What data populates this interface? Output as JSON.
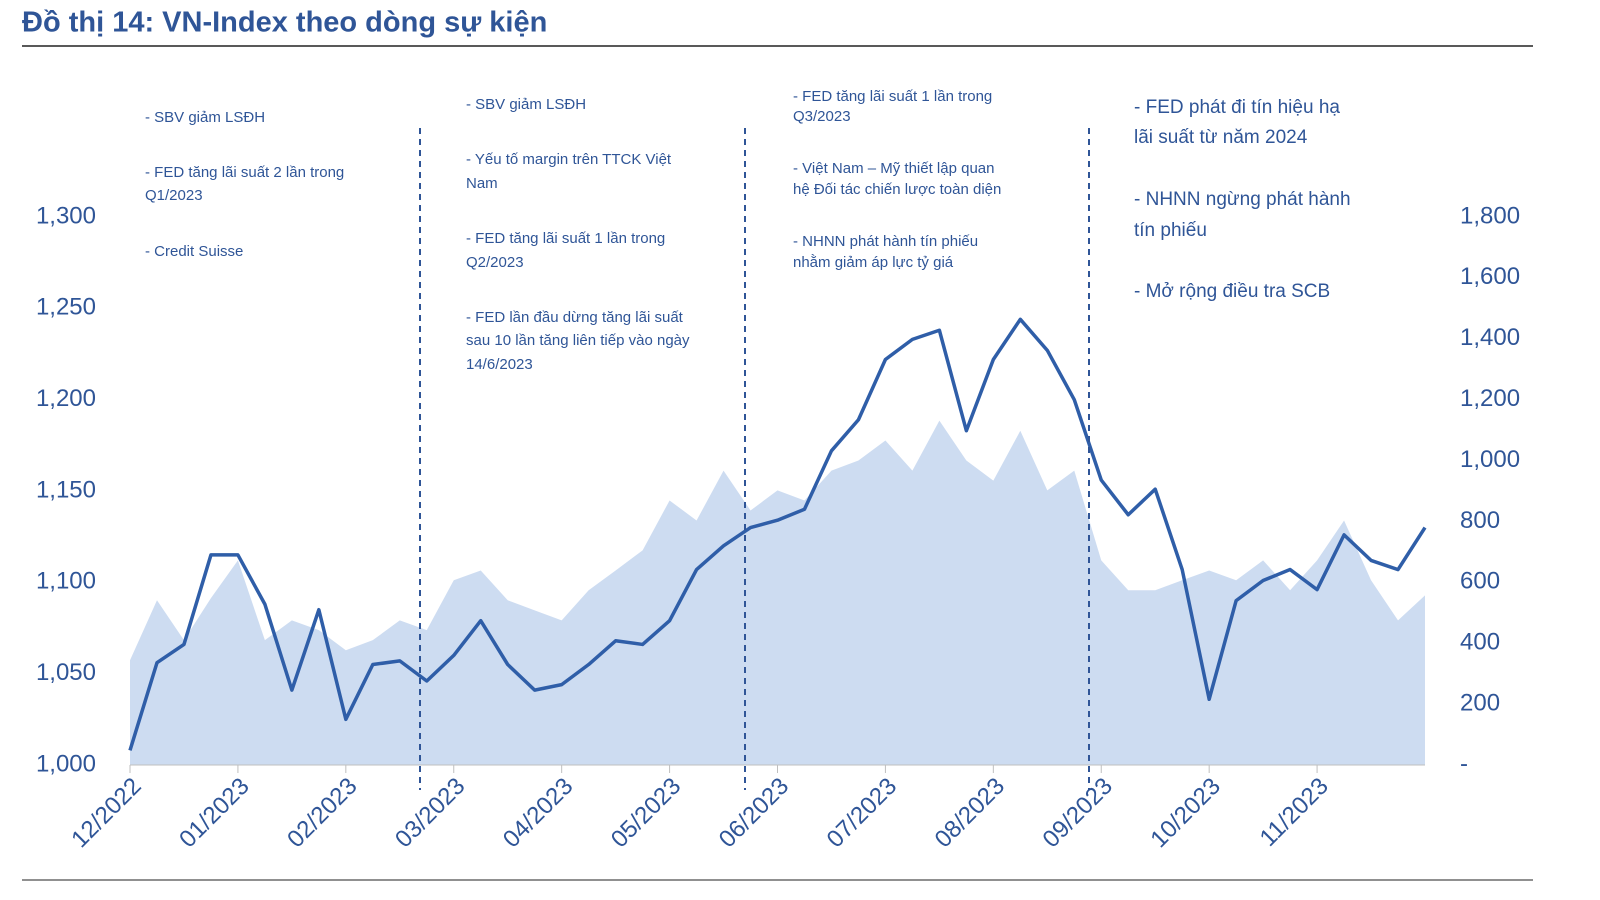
{
  "chart_data": {
    "type": "line",
    "title": "Đồ thị 14: VN-Index theo dòng sự kiện",
    "x": [
      0,
      0.25,
      0.5,
      0.75,
      1,
      1.25,
      1.5,
      1.75,
      2,
      2.25,
      2.5,
      2.75,
      3,
      3.25,
      3.5,
      3.75,
      4,
      4.25,
      4.5,
      4.75,
      5,
      5.25,
      5.5,
      5.75,
      6,
      6.25,
      6.5,
      6.75,
      7,
      7.25,
      7.5,
      7.75,
      8,
      8.25,
      8.5,
      8.75,
      9,
      9.25,
      9.5,
      9.75,
      10,
      10.25,
      10.5,
      10.75,
      11,
      11.25,
      11.5,
      11.75,
      12
    ],
    "xlim": [
      0,
      12
    ],
    "xticks": [
      {
        "value": 0,
        "label": "12/2022"
      },
      {
        "value": 1,
        "label": "01/2023"
      },
      {
        "value": 2,
        "label": "02/2023"
      },
      {
        "value": 3,
        "label": "03/2023"
      },
      {
        "value": 4,
        "label": "04/2023"
      },
      {
        "value": 5,
        "label": "05/2023"
      },
      {
        "value": 6,
        "label": "06/2023"
      },
      {
        "value": 7,
        "label": "07/2023"
      },
      {
        "value": 8,
        "label": "08/2023"
      },
      {
        "value": 9,
        "label": "09/2023"
      },
      {
        "value": 10,
        "label": "10/2023"
      },
      {
        "value": 11,
        "label": "11/2023"
      }
    ],
    "ylim": [
      1000,
      1300
    ],
    "yticks": [
      {
        "value": 1000,
        "label": "1,000"
      },
      {
        "value": 1050,
        "label": "1,050"
      },
      {
        "value": 1100,
        "label": "1,100"
      },
      {
        "value": 1150,
        "label": "1,150"
      },
      {
        "value": 1200,
        "label": "1,200"
      },
      {
        "value": 1250,
        "label": "1,250"
      },
      {
        "value": 1300,
        "label": "1,300"
      }
    ],
    "y2lim": [
      0,
      1800
    ],
    "y2ticks": [
      {
        "value": 0,
        "label": "-"
      },
      200,
      400,
      600,
      800,
      {
        "value": 1000,
        "label": "1,000"
      },
      {
        "value": 1200,
        "label": "1,200"
      },
      {
        "value": 1400,
        "label": "1,400"
      },
      {
        "value": 1600,
        "label": "1,600"
      },
      {
        "value": 1800,
        "label": "1,800"
      }
    ],
    "series": [
      {
        "type": "line",
        "axis": "y",
        "color": "#2f5ea8",
        "values": [
          1008,
          1056,
          1066,
          1115,
          1115,
          1088,
          1041,
          1085,
          1025,
          1055,
          1057,
          1046,
          1060,
          1079,
          1055,
          1041,
          1044,
          1055,
          1068,
          1066,
          1079,
          1107,
          1120,
          1130,
          1134,
          1140,
          1172,
          1189,
          1222,
          1233,
          1238,
          1183,
          1222,
          1244,
          1227,
          1200,
          1156,
          1137,
          1151,
          1107,
          1036,
          1090,
          1101,
          1107,
          1096,
          1126,
          1112,
          1107,
          1130
        ]
      },
      {
        "type": "area",
        "axis": "y2",
        "color": "#cddcf1",
        "values": [
          344,
          541,
          410,
          548,
          672,
          410,
          475,
          443,
          377,
          410,
          475,
          443,
          607,
          639,
          541,
          508,
          475,
          574,
          639,
          705,
          869,
          803,
          967,
          836,
          902,
          869,
          967,
          1000,
          1066,
          967,
          1131,
          1000,
          934,
          1098,
          902,
          967,
          672,
          574,
          574,
          607,
          639,
          607,
          672,
          574,
          672,
          803,
          607,
          475,
          557
        ]
      }
    ],
    "annotations": [
      [
        [
          "- SBV giảm LSĐH"
        ],
        [
          "- FED tăng lãi suất 2 lần trong",
          "Q1/2023"
        ],
        [
          "- Credit Suisse"
        ]
      ],
      [
        [
          "- SBV giảm LSĐH"
        ],
        [
          "- Yếu tố margin trên TTCK Việt",
          "Nam"
        ],
        [
          "- FED tăng lãi suất 1 lần trong",
          "Q2/2023"
        ],
        [
          "- FED lần đầu dừng tăng lãi suất",
          "sau 10 lần tăng liên tiếp vào ngày",
          "14/6/2023"
        ]
      ],
      [
        [
          "- FED tăng lãi suất 1 lần trong",
          "Q3/2023"
        ],
        [
          "- Việt Nam – Mỹ thiết lập quan",
          "hệ Đối tác chiến lược toàn diện"
        ],
        [
          "- NHNN phát hành tín phiếu",
          "nhằm giảm áp lực tỷ giá"
        ]
      ],
      [
        [
          "- FED phát đi tín hiệu hạ",
          "lãi suất từ năm 2024"
        ],
        [
          "- NHNN ngừng phát hành",
          "tín phiếu"
        ],
        [
          "- Mở rộng điều tra SCB"
        ]
      ]
    ]
  }
}
